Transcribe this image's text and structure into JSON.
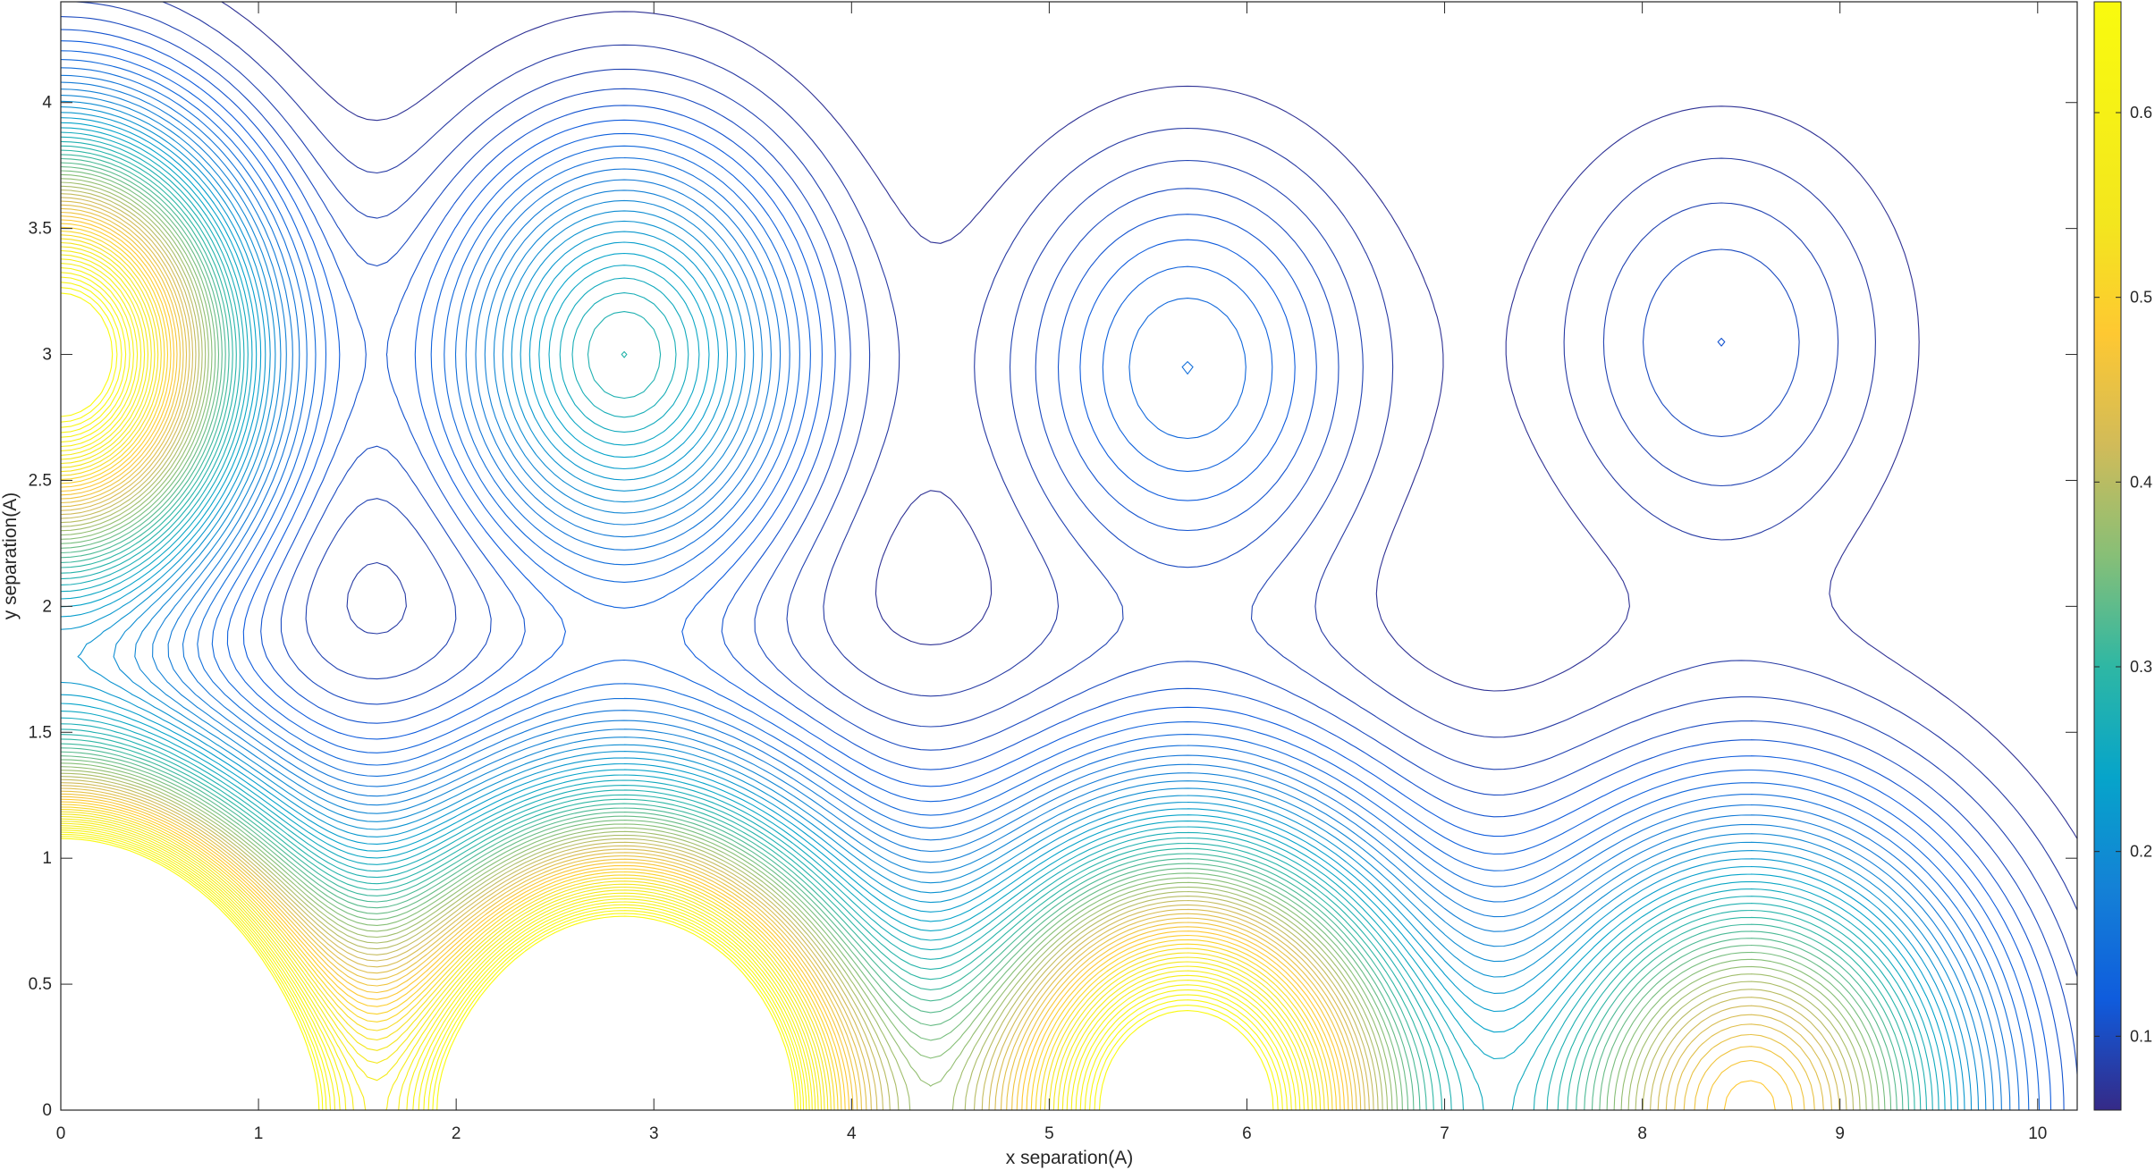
{
  "chart_data": {
    "type": "contour",
    "title": "",
    "xlabel": "x separation(A)",
    "ylabel": "y separation(A)",
    "xlim": [
      0,
      10.2
    ],
    "ylim": [
      0,
      4.4
    ],
    "xticks": [
      0,
      1,
      2,
      3,
      4,
      5,
      6,
      7,
      8,
      9,
      10
    ],
    "yticks": [
      0,
      0.5,
      1,
      1.5,
      2,
      2.5,
      3,
      3.5,
      4
    ],
    "colorbar": {
      "min": 0.06,
      "max": 0.66,
      "ticks": [
        0.1,
        0.2,
        0.3,
        0.4,
        0.5,
        0.6
      ],
      "colormap": "parula"
    },
    "contour_levels": {
      "start": 0.07,
      "step": 0.01,
      "count": 59
    },
    "peaks": [
      {
        "x": 0,
        "y": 0,
        "value": 0.66
      },
      {
        "x": 2.85,
        "y": 0,
        "value": 0.58
      },
      {
        "x": 5.7,
        "y": 0,
        "value": 0.4
      },
      {
        "x": 8.55,
        "y": 0,
        "value": 0.27
      },
      {
        "x": 0,
        "y": 3.0,
        "value": 0.38
      },
      {
        "x": 2.85,
        "y": 3.0,
        "value": 0.29
      },
      {
        "x": 5.7,
        "y": 2.95,
        "value": 0.15
      },
      {
        "x": 8.4,
        "y": 3.05,
        "value": 0.11
      }
    ],
    "grid": false,
    "legend": "none"
  },
  "axes": {
    "x_tick_labels": [
      "0",
      "1",
      "2",
      "3",
      "4",
      "5",
      "6",
      "7",
      "8",
      "9",
      "10"
    ],
    "y_tick_labels": [
      "0",
      "0.5",
      "1",
      "1.5",
      "2",
      "2.5",
      "3",
      "3.5",
      "4"
    ],
    "colorbar_tick_labels": [
      "0.1",
      "0.2",
      "0.3",
      "0.4",
      "0.5",
      "0.6"
    ]
  },
  "colors": {
    "axis": "#262626",
    "colormap_low": "#352a87",
    "colormap_high": "#f9fb0e"
  }
}
